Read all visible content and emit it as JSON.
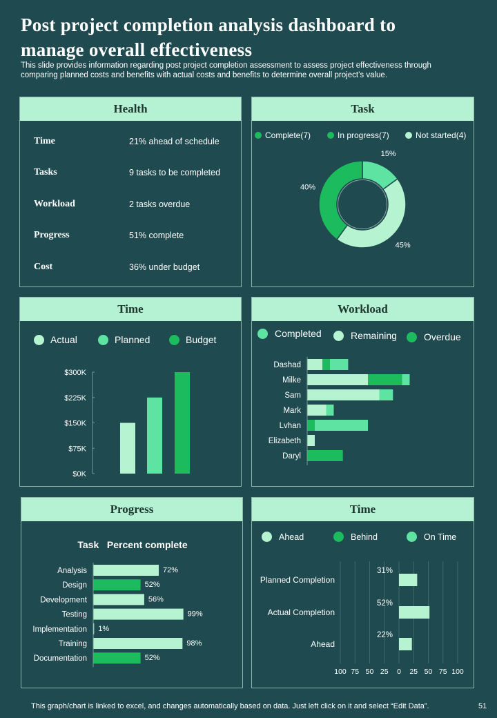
{
  "title_line1": "Post project completion analysis dashboard to",
  "title_line2": "manage overall effectiveness",
  "subtitle_line1": "This slide provides information regarding post project completion assessment to assess project effectiveness through",
  "subtitle_line2": "comparing planned costs and benefits with actual costs and benefits  to determine overall project’s value.",
  "footer": "This graph/chart is linked to excel,  and changes automatically based on data. Just left click on it and select “Edit Data”.",
  "page_number": "51",
  "colors": {
    "background": "#1f4a4f",
    "header": "#b4f2d3",
    "light": "#b5f3d1",
    "mid": "#5ee3a2",
    "dark": "#1bbb5e"
  },
  "health": {
    "title": "Health",
    "rows": [
      {
        "label": "Time",
        "value": "21% ahead of schedule"
      },
      {
        "label": "Tasks",
        "value": "9 tasks to be completed"
      },
      {
        "label": "Workload",
        "value": "2 tasks overdue"
      },
      {
        "label": "Progress",
        "value": "51% complete"
      },
      {
        "label": "Cost",
        "value": "36% under  budget"
      }
    ]
  },
  "task": {
    "title": "Task"
  },
  "time1": {
    "title": "Time"
  },
  "workload": {
    "title": "Workload"
  },
  "progress": {
    "title": "Progress"
  },
  "time2": {
    "title": "Time"
  },
  "chart_data": [
    {
      "type": "pie",
      "variant": "donut",
      "legend": [
        "Complete(7)",
        "In progress(7)",
        "Not started(4)"
      ],
      "legend_colors": [
        "#1bbb5e",
        "#1bbb5e",
        "#b5f3d1"
      ],
      "slices": [
        {
          "label": "15%",
          "value": 15,
          "color": "#5ee3a2"
        },
        {
          "label": "45%",
          "value": 45,
          "color": "#b5f3d1"
        },
        {
          "label": "40%",
          "value": 40,
          "color": "#1bbb5e"
        }
      ]
    },
    {
      "type": "bar",
      "series": [
        {
          "name": "Actual",
          "value": 150000,
          "color": "#b5f3d1"
        },
        {
          "name": "Planned",
          "value": 225000,
          "color": "#5ee3a2"
        },
        {
          "name": "Budget",
          "value": 300000,
          "color": "#1bbb5e"
        }
      ],
      "yticks": [
        "$0K",
        "$75K",
        "$150K",
        "$225K",
        "$300K"
      ],
      "ylim": [
        0,
        300000
      ]
    },
    {
      "type": "bar",
      "orientation": "horizontal",
      "stacked": true,
      "legend": [
        "Completed",
        "Remaining",
        "Overdue"
      ],
      "legend_colors": [
        "#5ee3a2",
        "#b5f3d1",
        "#1bbb5e"
      ],
      "categories": [
        "Dashad",
        "Milke",
        "Sam",
        "Mark",
        "Lvhan",
        "Elizabeth",
        "Daryl"
      ],
      "series": [
        {
          "name": "Remaining",
          "color": "#b5f3d1",
          "values": [
            2,
            8,
            9.5,
            2.5,
            0,
            1,
            0
          ]
        },
        {
          "name": "Overdue",
          "color": "#1bbb5e",
          "values": [
            1,
            4.5,
            0,
            0,
            1,
            0,
            4.7
          ]
        },
        {
          "name": "Completed",
          "color": "#5ee3a2",
          "values": [
            2.4,
            1,
            1.8,
            1,
            7,
            0,
            0
          ]
        }
      ],
      "xlim": [
        0,
        20
      ]
    },
    {
      "type": "bar",
      "orientation": "horizontal",
      "header_left": "Task",
      "header_right": "Percent complete",
      "categories": [
        "Analysis",
        "Design",
        "Development",
        "Testing",
        "Implementation",
        "Training",
        "Documentation"
      ],
      "values": [
        72,
        52,
        56,
        99,
        1,
        98,
        52
      ],
      "labels": [
        "72%",
        "52%",
        "56%",
        "99%",
        "1%",
        "98%",
        "52%"
      ],
      "colors": [
        "#b5f3d1",
        "#1bbb5e",
        "#b5f3d1",
        "#b5f3d1",
        "#b5f3d1",
        "#b5f3d1",
        "#1bbb5e"
      ],
      "xlim": [
        0,
        100
      ]
    },
    {
      "type": "bar",
      "orientation": "horizontal",
      "legend": [
        "Ahead",
        "Behind",
        "On Time"
      ],
      "legend_colors": [
        "#b5f3d1",
        "#1bbb5e",
        "#5ee3a2"
      ],
      "categories": [
        "Planned Completion",
        "Actual Completion",
        "Ahead"
      ],
      "values": [
        31,
        52,
        22
      ],
      "labels": [
        "31%",
        "52%",
        "22%"
      ],
      "xticks": [
        "100",
        "75",
        "50",
        "25",
        "0",
        "25",
        "50",
        "75",
        "100"
      ],
      "xlim": [
        -100,
        100
      ]
    }
  ]
}
